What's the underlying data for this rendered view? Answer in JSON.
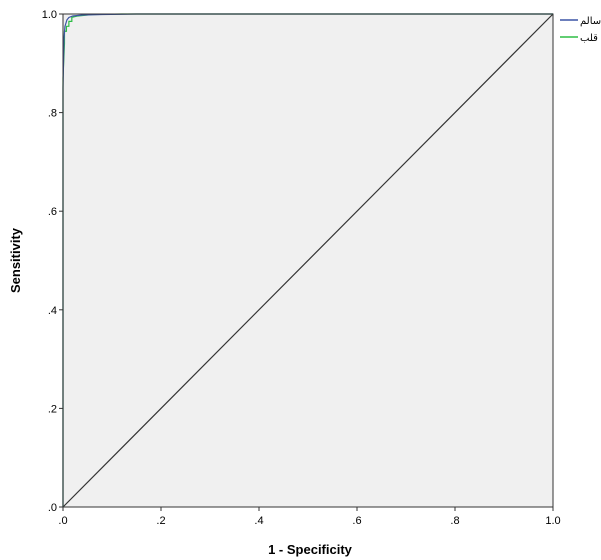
{
  "chart_data": {
    "type": "line",
    "xlabel": "1 - Specificity",
    "ylabel": "Sensitivity",
    "xlim": [
      0,
      1
    ],
    "ylim": [
      0,
      1
    ],
    "x_ticks": [
      ".0",
      ".2",
      ".4",
      ".6",
      ".8",
      "1.0"
    ],
    "y_ticks": [
      ".0",
      ".2",
      ".4",
      ".6",
      ".8",
      "1.0"
    ],
    "grid": false,
    "legend_position": "top-right",
    "background_color": "#f0f0f0",
    "series": [
      {
        "name": "سالم",
        "color": "#3c55a5",
        "points": [
          [
            0,
            0
          ],
          [
            0,
            0.85
          ],
          [
            0.002,
            0.95
          ],
          [
            0.004,
            0.975
          ],
          [
            0.008,
            0.988
          ],
          [
            0.012,
            0.993
          ],
          [
            0.02,
            0.996
          ],
          [
            0.04,
            0.998
          ],
          [
            0.08,
            0.999
          ],
          [
            0.15,
            1
          ],
          [
            1,
            1
          ]
        ]
      },
      {
        "name": "قلب",
        "color": "#2ebd45",
        "points": [
          [
            0,
            0
          ],
          [
            0,
            0.87
          ],
          [
            0.003,
            0.94
          ],
          [
            0.003,
            0.965
          ],
          [
            0.007,
            0.965
          ],
          [
            0.007,
            0.975
          ],
          [
            0.012,
            0.975
          ],
          [
            0.012,
            0.985
          ],
          [
            0.018,
            0.985
          ],
          [
            0.018,
            0.993
          ],
          [
            0.03,
            0.996
          ],
          [
            0.06,
            0.999
          ],
          [
            0.12,
            1
          ],
          [
            1,
            1
          ]
        ]
      },
      {
        "name": "",
        "color": "#333333",
        "points": [
          [
            0,
            0
          ],
          [
            1,
            1
          ]
        ]
      }
    ]
  }
}
